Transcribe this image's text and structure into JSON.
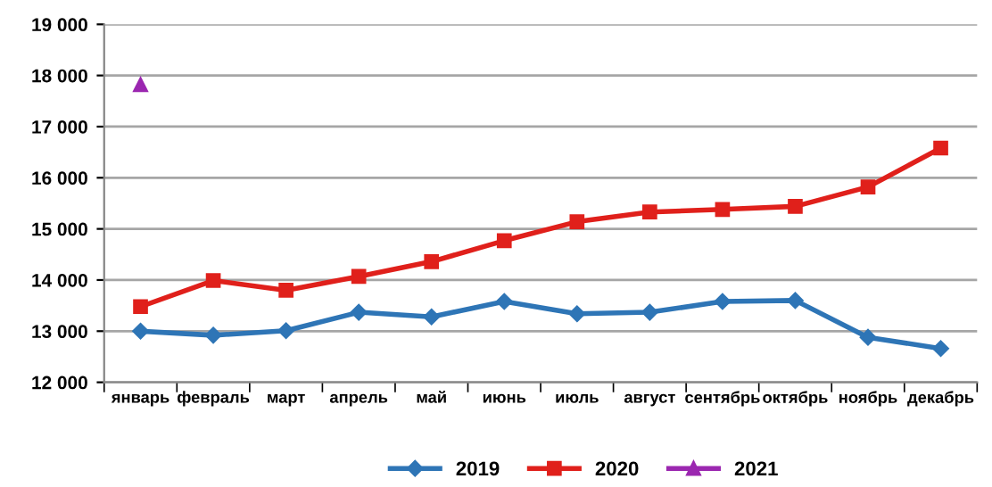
{
  "chart_data": {
    "type": "line",
    "categories": [
      "январь",
      "февраль",
      "март",
      "апрель",
      "май",
      "июнь",
      "июль",
      "август",
      "сентябрь",
      "октябрь",
      "ноябрь",
      "декабрь"
    ],
    "series": [
      {
        "name": "2019",
        "color": "#2e75b6",
        "marker": "diamond",
        "values": [
          13000,
          12920,
          13010,
          13370,
          13280,
          13580,
          13340,
          13370,
          13580,
          13600,
          12880,
          12660
        ]
      },
      {
        "name": "2020",
        "color": "#e0201b",
        "marker": "square",
        "values": [
          13480,
          13990,
          13800,
          14070,
          14360,
          14770,
          15140,
          15330,
          15380,
          15440,
          15820,
          16580
        ]
      },
      {
        "name": "2021",
        "color": "#9b27b0",
        "marker": "triangle",
        "values": [
          17820,
          null,
          null,
          null,
          null,
          null,
          null,
          null,
          null,
          null,
          null,
          null
        ]
      }
    ],
    "ylim": [
      12000,
      19000
    ],
    "yticks": [
      {
        "value": 12000,
        "label": "12 000"
      },
      {
        "value": 13000,
        "label": "13 000"
      },
      {
        "value": 14000,
        "label": "14 000"
      },
      {
        "value": 15000,
        "label": "15 000"
      },
      {
        "value": 16000,
        "label": "16 000"
      },
      {
        "value": 17000,
        "label": "17 000"
      },
      {
        "value": 18000,
        "label": "18 000"
      },
      {
        "value": 19000,
        "label": "19 000"
      }
    ],
    "grid": "y",
    "legend": "bottom"
  }
}
